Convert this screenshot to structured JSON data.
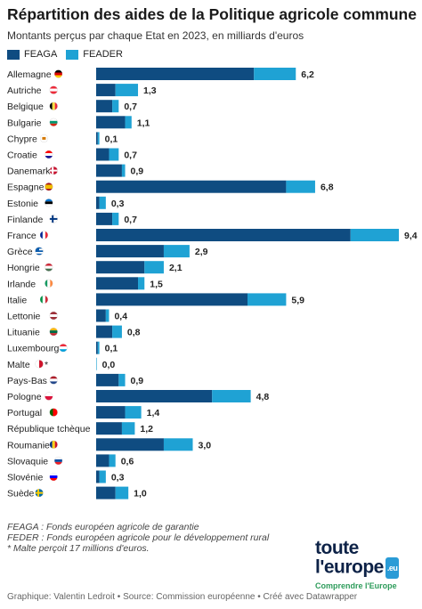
{
  "header": {
    "title": "Répartition des aides de la Politique agricole commune",
    "title_icon": "cow-icon",
    "subtitle": "Montants perçus par chaque Etat en 2023, en milliards d'euros"
  },
  "legend": [
    {
      "label": "FEAGA",
      "color": "#0f4c81"
    },
    {
      "label": "FEADER",
      "color": "#1fa2d4"
    }
  ],
  "chart_data": {
    "type": "bar",
    "orientation": "horizontal",
    "stacked": true,
    "title": "Répartition des aides de la Politique agricole commune",
    "subtitle": "Montants perçus par chaque Etat en 2023, en milliards d'euros",
    "xlim": [
      0,
      10
    ],
    "grid": false,
    "legend_position": "top-left",
    "categories": [
      "Allemagne",
      "Autriche",
      "Belgique",
      "Bulgarie",
      "Chypre",
      "Croatie",
      "Danemark",
      "Espagne",
      "Estonie",
      "Finlande",
      "France",
      "Grèce",
      "Hongrie",
      "Irlande",
      "Italie",
      "Lettonie",
      "Lituanie",
      "Luxembourg",
      "Malte *",
      "Pays-Bas",
      "Pologne",
      "Portugal",
      "République tchèque",
      "Roumanie",
      "Slovaquie",
      "Slovénie",
      "Suède"
    ],
    "flags": [
      "de",
      "at",
      "be",
      "bg",
      "cy",
      "hr",
      "dk",
      "es",
      "ee",
      "fi",
      "fr",
      "gr",
      "hu",
      "ie",
      "it",
      "lv",
      "lt",
      "lu",
      "mt",
      "nl",
      "pl",
      "pt",
      "cz",
      "ro",
      "sk",
      "si",
      "se"
    ],
    "series": [
      {
        "name": "FEAGA",
        "color": "#0f4c81",
        "values": [
          4.9,
          0.6,
          0.5,
          0.9,
          0.05,
          0.4,
          0.8,
          5.9,
          0.1,
          0.5,
          7.9,
          2.1,
          1.5,
          1.3,
          4.7,
          0.3,
          0.5,
          0.05,
          0.0,
          0.7,
          3.6,
          0.9,
          0.8,
          2.1,
          0.4,
          0.1,
          0.6
        ]
      },
      {
        "name": "FEADER",
        "color": "#1fa2d4",
        "values": [
          1.3,
          0.7,
          0.2,
          0.2,
          0.05,
          0.3,
          0.1,
          0.9,
          0.2,
          0.2,
          1.5,
          0.8,
          0.6,
          0.2,
          1.2,
          0.1,
          0.3,
          0.05,
          0.017,
          0.2,
          1.2,
          0.5,
          0.4,
          0.9,
          0.2,
          0.2,
          0.4
        ]
      }
    ],
    "totals": [
      "6,2",
      "1,3",
      "0,7",
      "1,1",
      "0,1",
      "0,7",
      "0,9",
      "6,8",
      "0,3",
      "0,7",
      "9,4",
      "2,9",
      "2,1",
      "1,5",
      "5,9",
      "0,4",
      "0,8",
      "0,1",
      "0,0",
      "0,9",
      "4,8",
      "1,4",
      "1,2",
      "3,0",
      "0,6",
      "0,3",
      "1,0"
    ]
  },
  "footnotes": [
    "FEAGA : Fonds européen agricole de garantie",
    "FEDER : Fonds européen agricole pour le développement rural",
    "* Malte perçoit 17 millions d'euros."
  ],
  "source": "Graphique: Valentin Ledroit • Source: Commission européenne • Créé avec Datawrapper",
  "logo": {
    "line1": "toute",
    "line2": "l'europe",
    "badge": ".eu",
    "tagline": "Comprendre l'Europe"
  }
}
